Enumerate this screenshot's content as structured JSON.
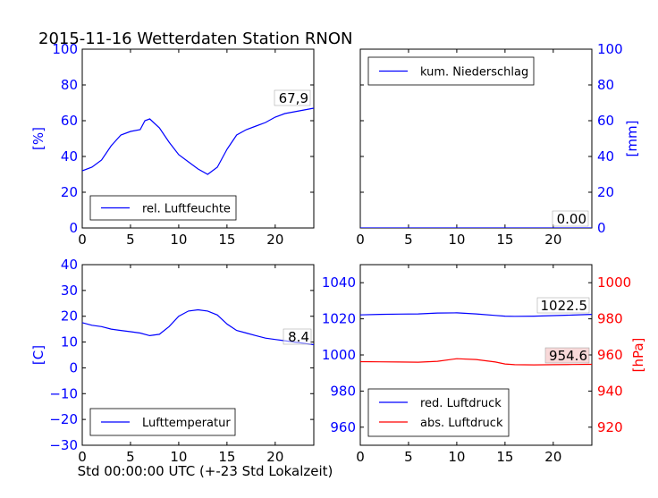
{
  "title": "2015-11-16 Wetterdaten Station RNON",
  "colors": {
    "primary": "#0000ff",
    "secondary": "#ff0000",
    "axis": "#000000",
    "label_box": "#d9d9d9"
  },
  "chart_data": [
    {
      "id": "humidity",
      "type": "line",
      "xlim": [
        0,
        24
      ],
      "xticks": [
        "0",
        "5",
        "10",
        "15",
        "20"
      ],
      "ylim": [
        0,
        100
      ],
      "yticks": [
        "0",
        "20",
        "40",
        "60",
        "80",
        "100"
      ],
      "ylabel": "[%]",
      "yaxis_side": "left",
      "legend_location": "lower-left",
      "value_label": "67,9",
      "series": [
        {
          "name": "rel. Luftfeuchte",
          "color": "#0000ff",
          "x": [
            0,
            1,
            2,
            3,
            4,
            5,
            6,
            6.5,
            7,
            8,
            9,
            10,
            11,
            12,
            13,
            14,
            15,
            16,
            17,
            18,
            19,
            20,
            21,
            22,
            23,
            24
          ],
          "y": [
            32,
            34,
            38,
            46,
            52,
            54,
            55,
            60,
            61,
            56,
            48,
            41,
            37,
            33,
            30,
            34,
            44,
            52,
            55,
            57,
            59,
            62,
            64,
            65,
            66,
            67
          ]
        }
      ]
    },
    {
      "id": "precipitation",
      "type": "line",
      "xlim": [
        0,
        24
      ],
      "xticks": [
        "0",
        "5",
        "10",
        "15",
        "20"
      ],
      "ylim": [
        0,
        100
      ],
      "yticks": [
        "0",
        "20",
        "40",
        "60",
        "80",
        "100"
      ],
      "ylabel": "[mm]",
      "yaxis_side": "right",
      "legend_location": "upper-left",
      "value_label": "0.00",
      "series": [
        {
          "name": "kum. Niederschlag",
          "color": "#0000ff",
          "x": [
            0,
            24
          ],
          "y": [
            0,
            0
          ]
        }
      ]
    },
    {
      "id": "temperature",
      "type": "line",
      "xlim": [
        0,
        24
      ],
      "xticks": [
        "0",
        "5",
        "10",
        "15",
        "20"
      ],
      "ylim": [
        -30,
        40
      ],
      "yticks": [
        "−30",
        "−20",
        "−10",
        "0",
        "10",
        "20",
        "30",
        "40"
      ],
      "ylabel": "[C]",
      "xlabel": "Std 00:00:00 UTC (+-23 Std Lokalzeit)",
      "yaxis_side": "left",
      "legend_location": "lower-left",
      "value_label": "8.4",
      "series": [
        {
          "name": "Lufttemperatur",
          "color": "#0000ff",
          "x": [
            0,
            1,
            2,
            3,
            4,
            5,
            6,
            7,
            8,
            9,
            10,
            11,
            12,
            13,
            14,
            15,
            16,
            17,
            18,
            19,
            20,
            21,
            22,
            23,
            24
          ],
          "y": [
            17.5,
            16.5,
            16,
            15,
            14.5,
            14,
            13.5,
            12.5,
            13,
            16,
            20,
            22,
            22.5,
            22,
            20.5,
            17,
            14.5,
            13.5,
            12.5,
            11.5,
            11,
            10.5,
            10,
            9.5,
            9
          ]
        }
      ]
    },
    {
      "id": "pressure",
      "type": "line",
      "xlim": [
        0,
        24
      ],
      "xticks": [
        "0",
        "5",
        "10",
        "15",
        "20"
      ],
      "ylim": [
        950,
        1050
      ],
      "yticks": [
        "960",
        "980",
        "1000",
        "1020",
        "1040"
      ],
      "ylim_right": [
        910,
        1010
      ],
      "yticks_right": [
        "920",
        "940",
        "960",
        "980",
        "1000"
      ],
      "ylabel_right": "[hPa]",
      "legend_location": "lower-left",
      "value_label": "1022.5",
      "value_label_right": "954.6",
      "series": [
        {
          "name": "red. Luftdruck",
          "color": "#0000ff",
          "axis": "left",
          "x": [
            0,
            2,
            4,
            6,
            8,
            10,
            12,
            14,
            15,
            16,
            18,
            20,
            22,
            24
          ],
          "y": [
            1022.2,
            1022.5,
            1022.6,
            1022.7,
            1023.2,
            1023.3,
            1022.7,
            1021.9,
            1021.5,
            1021.4,
            1021.5,
            1021.8,
            1022.1,
            1022.5
          ]
        },
        {
          "name": "abs. Luftdruck",
          "color": "#ff0000",
          "axis": "right",
          "x": [
            0,
            2,
            4,
            6,
            8,
            10,
            12,
            14,
            15,
            16,
            18,
            20,
            22,
            24
          ],
          "y": [
            956.3,
            956.2,
            956.1,
            956.0,
            956.5,
            957.9,
            957.5,
            956.1,
            955.0,
            954.6,
            954.5,
            954.6,
            954.7,
            954.8
          ]
        }
      ]
    }
  ]
}
